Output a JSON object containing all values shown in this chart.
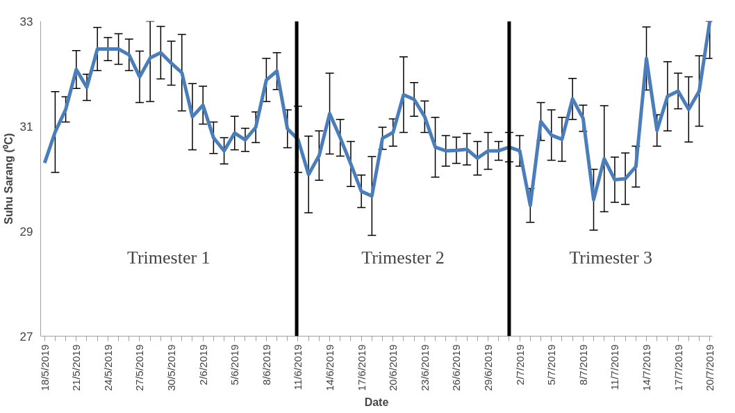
{
  "chart_data": {
    "type": "line",
    "xlabel": "Date",
    "ylabel": "Suhu Sarang (⁰C)",
    "x": [
      "2019-05-18",
      "2019-05-19",
      "2019-05-20",
      "2019-05-21",
      "2019-05-22",
      "2019-05-23",
      "2019-05-24",
      "2019-05-25",
      "2019-05-26",
      "2019-05-27",
      "2019-05-28",
      "2019-05-29",
      "2019-05-30",
      "2019-05-31",
      "2019-06-01",
      "2019-06-02",
      "2019-06-03",
      "2019-06-04",
      "2019-06-05",
      "2019-06-06",
      "2019-06-07",
      "2019-06-08",
      "2019-06-09",
      "2019-06-10",
      "2019-06-11",
      "2019-06-12",
      "2019-06-13",
      "2019-06-14",
      "2019-06-15",
      "2019-06-16",
      "2019-06-17",
      "2019-06-18",
      "2019-06-19",
      "2019-06-20",
      "2019-06-21",
      "2019-06-22",
      "2019-06-23",
      "2019-06-24",
      "2019-06-25",
      "2019-06-26",
      "2019-06-27",
      "2019-06-28",
      "2019-06-29",
      "2019-06-30",
      "2019-07-01",
      "2019-07-02",
      "2019-07-03",
      "2019-07-04",
      "2019-07-05",
      "2019-07-06",
      "2019-07-07",
      "2019-07-08",
      "2019-07-09",
      "2019-07-10",
      "2019-07-11",
      "2019-07-12",
      "2019-07-13",
      "2019-07-14",
      "2019-07-15",
      "2019-07-16",
      "2019-07-17",
      "2019-07-18",
      "2019-07-19",
      "2019-07-20"
    ],
    "series": [
      {
        "color": "#4a7ebb",
        "values": [
          30.3,
          30.89,
          31.32,
          32.08,
          31.74,
          32.47,
          32.47,
          32.47,
          32.36,
          31.94,
          32.3,
          32.4,
          32.2,
          32.02,
          31.18,
          31.4,
          30.78,
          30.53,
          30.87,
          30.74,
          30.98,
          31.88,
          32.05,
          30.95,
          30.75,
          30.08,
          30.44,
          31.24,
          30.78,
          30.28,
          29.76,
          29.67,
          30.77,
          30.88,
          31.6,
          31.51,
          31.18,
          30.6,
          30.53,
          30.54,
          30.56,
          30.39,
          30.53,
          30.53,
          30.6,
          30.53,
          29.49,
          31.09,
          30.83,
          30.75,
          31.52,
          31.15,
          29.6,
          30.38,
          29.98,
          30.0,
          30.23,
          32.29,
          30.92,
          31.57,
          31.67,
          31.32,
          31.67,
          33.0
        ],
        "errors": [
          null,
          0.77,
          0.24,
          0.36,
          0.25,
          0.41,
          0.22,
          0.29,
          0.3,
          0.49,
          [
            31.47,
            33
          ],
          0.5,
          0.42,
          0.73,
          0.63,
          0.36,
          0.3,
          0.25,
          0.32,
          0.22,
          0.29,
          0.41,
          0.35,
          0.36,
          0.63,
          0.73,
          0.47,
          0.77,
          0.35,
          0.43,
          0.31,
          0.75,
          0.21,
          0.26,
          0.72,
          0.32,
          0.3,
          0.57,
          0.29,
          0.25,
          0.3,
          0.32,
          0.35,
          0.18,
          0.28,
          0.29,
          0.32,
          0.36,
          0.48,
          0.42,
          0.39,
          0.25,
          0.58,
          1.01,
          0.43,
          0.49,
          0.39,
          0.6,
          0.3,
          0.66,
          0.34,
          0.62,
          0.67,
          [
            32.29,
            33
          ]
        ]
      }
    ],
    "xlim": [
      "2019-05-17T15:00",
      "2019-07-20T06:00"
    ],
    "xticks": [
      {
        "value": "2019-05-18",
        "label": "18/5/2019"
      },
      {
        "value": "2019-05-21",
        "label": "21/5/2019"
      },
      {
        "value": "2019-05-24",
        "label": "24/5/2019"
      },
      {
        "value": "2019-05-27",
        "label": "27/5/2019"
      },
      {
        "value": "2019-05-30",
        "label": "30/5/2019"
      },
      {
        "value": "2019-06-02",
        "label": "2/6/2019"
      },
      {
        "value": "2019-06-05",
        "label": "5/6/2019"
      },
      {
        "value": "2019-06-08",
        "label": "8/6/2019"
      },
      {
        "value": "2019-06-11",
        "label": "11/6/2019"
      },
      {
        "value": "2019-06-14",
        "label": "14/6/2019"
      },
      {
        "value": "2019-06-17",
        "label": "17/6/2019"
      },
      {
        "value": "2019-06-20",
        "label": "20/6/2019"
      },
      {
        "value": "2019-06-23",
        "label": "23/6/2019"
      },
      {
        "value": "2019-06-26",
        "label": "26/6/2019"
      },
      {
        "value": "2019-06-29",
        "label": "29/6/2019"
      },
      {
        "value": "2019-07-02",
        "label": "2/7/2019"
      },
      {
        "value": "2019-07-05",
        "label": "5/7/2019"
      },
      {
        "value": "2019-07-08",
        "label": "8/7/2019"
      },
      {
        "value": "2019-07-11",
        "label": "11/7/2019"
      },
      {
        "value": "2019-07-14",
        "label": "14/7/2019"
      },
      {
        "value": "2019-07-17",
        "label": "17/7/2019"
      },
      {
        "value": "2019-07-20",
        "label": "20/7/2019"
      }
    ],
    "ylim": [
      27,
      33
    ],
    "yticks": [
      27,
      29,
      31,
      33
    ],
    "ref_lines": [
      {
        "axis": "x",
        "value": "2019-06-10T21:00",
        "color": "#000000"
      },
      {
        "axis": "x",
        "value": "2019-07-01",
        "color": "#000000"
      }
    ],
    "annotations": [
      "Trimester 1",
      "Trimester 2",
      "Trimester 3"
    ],
    "grid": false,
    "marker": "none",
    "line_style": "solid"
  }
}
